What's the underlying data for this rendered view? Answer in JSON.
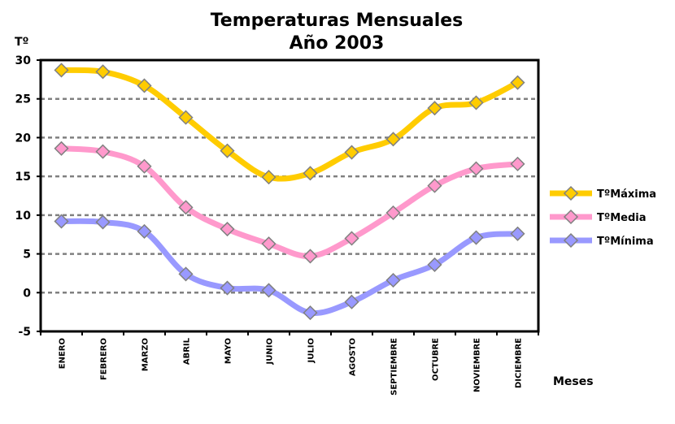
{
  "chart_data": {
    "type": "line",
    "title": "Temperaturas Mensuales",
    "subtitle": "Año 2003",
    "ylabel": "Tº",
    "xlabel": "Meses",
    "ylim": [
      -5,
      30
    ],
    "yticks": [
      30,
      25,
      20,
      15,
      10,
      5,
      0,
      -5
    ],
    "ytick_labels": [
      "30",
      "25",
      "20",
      "15",
      "10",
      "5",
      "0",
      "-5"
    ],
    "grid": true,
    "legend_position": "right",
    "categories": [
      "ENERO",
      "FEBRERO",
      "MARZO",
      "ABRIL",
      "MAYO",
      "JUNIO",
      "JULIO",
      "AGOSTO",
      "SEPTIEMBRE",
      "OCTUBRE",
      "NOVIEMBRE",
      "DICIEMBRE"
    ],
    "series": [
      {
        "name": "TºMáxima",
        "color": "#ffcc00",
        "values": [
          28.7,
          28.5,
          26.7,
          22.6,
          18.3,
          14.9,
          15.4,
          18.1,
          19.8,
          23.8,
          24.5,
          27.1
        ]
      },
      {
        "name": "TºMedia",
        "color": "#ff99cc",
        "values": [
          18.6,
          18.2,
          16.3,
          11.0,
          8.2,
          6.3,
          4.7,
          7.0,
          10.3,
          13.8,
          16.0,
          16.6
        ]
      },
      {
        "name": "TºMínima",
        "color": "#9999ff",
        "values": [
          9.2,
          9.1,
          7.9,
          2.4,
          0.6,
          0.3,
          -2.6,
          -1.2,
          1.6,
          3.6,
          7.1,
          7.6
        ]
      }
    ]
  }
}
